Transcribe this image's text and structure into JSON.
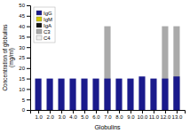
{
  "chart_data": {
    "type": "bar",
    "xlabel": "Globulins",
    "ylabel": "Concentration of globulins\n(mg/ml)",
    "x": [
      1.0,
      2.0,
      3.0,
      4.0,
      5.0,
      6.0,
      7.0,
      8.0,
      9.0,
      10.0,
      11.0,
      12.0,
      13.0
    ],
    "series": [
      {
        "name": "IgG",
        "color": "#1a1a8c",
        "values": [
          15,
          15,
          15,
          15,
          15,
          15,
          15,
          15,
          15,
          16,
          15,
          15,
          16
        ]
      },
      {
        "name": "IgM",
        "color": "#d4c800",
        "values": [
          0,
          0,
          0,
          0,
          0,
          0,
          0,
          0,
          0,
          0,
          0,
          0,
          0
        ]
      },
      {
        "name": "IgA",
        "color": "#111111",
        "values": [
          0,
          0,
          0,
          0,
          0,
          0,
          0,
          0,
          0,
          0,
          0,
          0,
          0
        ]
      },
      {
        "name": "C3",
        "color": "#aaaaaa",
        "values": [
          0,
          0,
          0,
          0,
          0,
          0,
          40,
          0,
          0,
          0,
          0,
          40,
          40
        ]
      },
      {
        "name": "C4",
        "color": "#eeeeee",
        "values": [
          0,
          0,
          0,
          0,
          0,
          0,
          0,
          0,
          0,
          0,
          0,
          0,
          0
        ]
      }
    ],
    "xlim": [
      0.3,
      13.7
    ],
    "xticks": [
      {
        "value": 1.0,
        "label": "1.0"
      },
      {
        "value": 2.0,
        "label": "2.0"
      },
      {
        "value": 3.0,
        "label": "3.0"
      },
      {
        "value": 4.0,
        "label": "4.0"
      },
      {
        "value": 5.0,
        "label": "5.0"
      },
      {
        "value": 6.0,
        "label": "6.0"
      },
      {
        "value": 7.0,
        "label": "7.0"
      },
      {
        "value": 8.0,
        "label": "8.0"
      },
      {
        "value": 9.0,
        "label": "9.0"
      },
      {
        "value": 10.0,
        "label": "10.0"
      },
      {
        "value": 11.0,
        "label": "11.0"
      },
      {
        "value": 12.0,
        "label": "12.0"
      },
      {
        "value": 13.0,
        "label": "13.0"
      }
    ],
    "ylim": [
      0,
      50
    ],
    "yticks": [
      0,
      5,
      10,
      15,
      20,
      25,
      30,
      35,
      40,
      45,
      50
    ],
    "grid": false,
    "legend": "upper left"
  }
}
